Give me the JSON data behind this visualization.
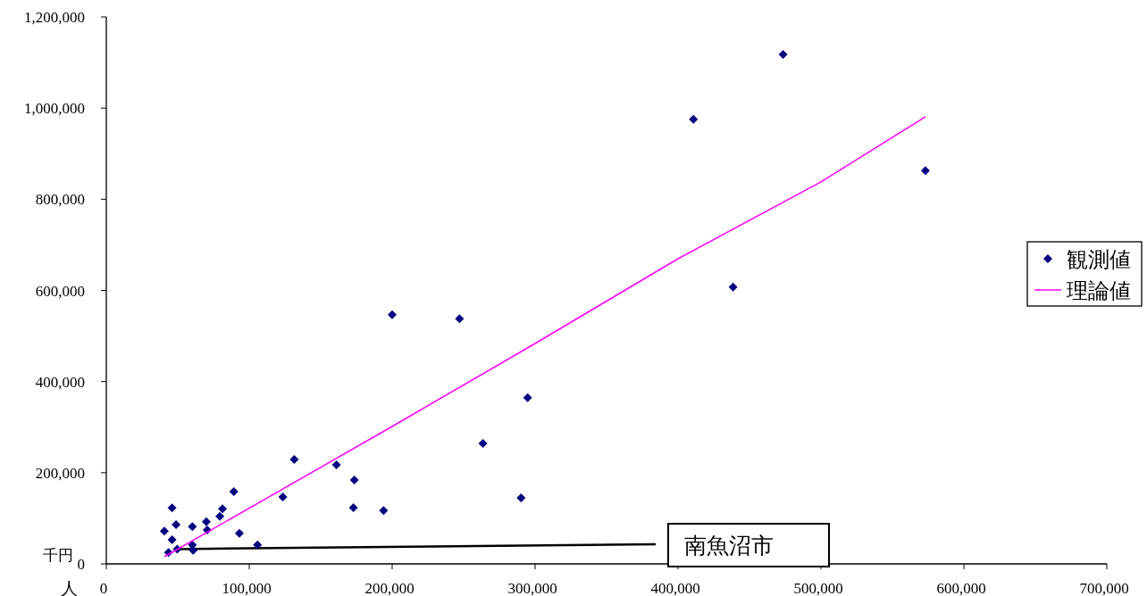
{
  "chart_data": {
    "type": "scatter",
    "xlabel": "人",
    "ylabel": "千円",
    "xlim": [
      0,
      700000
    ],
    "ylim": [
      0,
      1200000
    ],
    "xticks": [
      {
        "value": 0,
        "label": "0"
      },
      {
        "value": 100000,
        "label": "100,000"
      },
      {
        "value": 200000,
        "label": "200,000"
      },
      {
        "value": 300000,
        "label": "300,000"
      },
      {
        "value": 400000,
        "label": "400,000"
      },
      {
        "value": 500000,
        "label": "500,000"
      },
      {
        "value": 600000,
        "label": "600,000"
      },
      {
        "value": 700000,
        "label": "700,000"
      }
    ],
    "yticks": [
      {
        "value": 0,
        "label": "0"
      },
      {
        "value": 200000,
        "label": "200,000"
      },
      {
        "value": 400000,
        "label": "400,000"
      },
      {
        "value": 600000,
        "label": "600,000"
      },
      {
        "value": 800000,
        "label": "800,000"
      },
      {
        "value": 1000000,
        "label": "1,000,000"
      },
      {
        "value": 1200000,
        "label": "1,200,000"
      }
    ],
    "grid": false,
    "legend": "right",
    "series": [
      {
        "name": "観測値",
        "marker": "diamond",
        "color": "#000080",
        "x": [
          40600,
          46000,
          48800,
          46000,
          43500,
          49600,
          60200,
          60200,
          60800,
          70000,
          70600,
          79400,
          81300,
          89200,
          93100,
          105800,
          123500,
          131500,
          161000,
          173500,
          172900,
          194000,
          200000,
          247100,
          263500,
          294800,
          290200,
          473500,
          410800,
          573100,
          438500
        ],
        "values": [
          71800,
          123000,
          86000,
          53000,
          25000,
          32500,
          81600,
          41700,
          30000,
          92600,
          74400,
          104000,
          121000,
          158600,
          67200,
          41700,
          146800,
          229000,
          217300,
          184000,
          123300,
          117000,
          546800,
          537700,
          264300,
          364700,
          144900,
          1117800,
          975500,
          862800,
          607500
        ]
      },
      {
        "name": "理論値",
        "type": "line",
        "marker": "none",
        "line_style": "solid",
        "color": "#ff00ff",
        "x": [
          40600,
          200000,
          300000,
          400000,
          500000,
          573100
        ],
        "values": [
          15700,
          301500,
          483500,
          669500,
          838000,
          980800
        ]
      }
    ],
    "annotations": [
      {
        "text": "南魚沼市",
        "x": 49600,
        "y": 32500
      }
    ]
  }
}
